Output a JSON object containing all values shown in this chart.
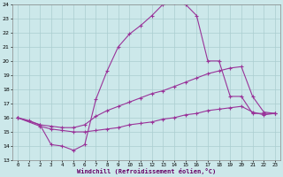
{
  "xlabel": "Windchill (Refroidissement éolien,°C)",
  "bg_color": "#cce8ea",
  "grid_color": "#aacdd0",
  "line_color": "#993399",
  "xlim": [
    -0.5,
    23.5
  ],
  "ylim": [
    13,
    24
  ],
  "xticks": [
    0,
    1,
    2,
    3,
    4,
    5,
    6,
    7,
    8,
    9,
    10,
    11,
    12,
    13,
    14,
    15,
    16,
    17,
    18,
    19,
    20,
    21,
    22,
    23
  ],
  "yticks": [
    13,
    14,
    15,
    16,
    17,
    18,
    19,
    20,
    21,
    22,
    23,
    24
  ],
  "line1_x": [
    0,
    1,
    2,
    3,
    4,
    5,
    6,
    7,
    8,
    9,
    10,
    11,
    12,
    13,
    14,
    15,
    16,
    17,
    18,
    19,
    20,
    21,
    22,
    23
  ],
  "line1_y": [
    16.0,
    15.8,
    15.5,
    14.1,
    14.0,
    13.7,
    14.1,
    17.3,
    19.3,
    21.0,
    21.9,
    22.5,
    23.2,
    24.0,
    24.1,
    24.0,
    23.2,
    20.0,
    20.0,
    17.5,
    17.5,
    16.3,
    16.3,
    16.3
  ],
  "line2_x": [
    0,
    2,
    3,
    4,
    5,
    6,
    7,
    8,
    9,
    10,
    11,
    12,
    13,
    14,
    15,
    16,
    17,
    18,
    19,
    20,
    21,
    22,
    23
  ],
  "line2_y": [
    16.0,
    15.5,
    15.4,
    15.3,
    15.3,
    15.5,
    16.1,
    16.5,
    16.8,
    17.1,
    17.4,
    17.7,
    17.9,
    18.2,
    18.5,
    18.8,
    19.1,
    19.3,
    19.5,
    19.6,
    17.5,
    16.4,
    16.3
  ],
  "line3_x": [
    0,
    2,
    3,
    4,
    5,
    6,
    7,
    8,
    9,
    10,
    11,
    12,
    13,
    14,
    15,
    16,
    17,
    18,
    19,
    20,
    21,
    22,
    23
  ],
  "line3_y": [
    16.0,
    15.4,
    15.2,
    15.1,
    15.0,
    15.0,
    15.1,
    15.2,
    15.3,
    15.5,
    15.6,
    15.7,
    15.9,
    16.0,
    16.2,
    16.3,
    16.5,
    16.6,
    16.7,
    16.8,
    16.4,
    16.2,
    16.3
  ]
}
